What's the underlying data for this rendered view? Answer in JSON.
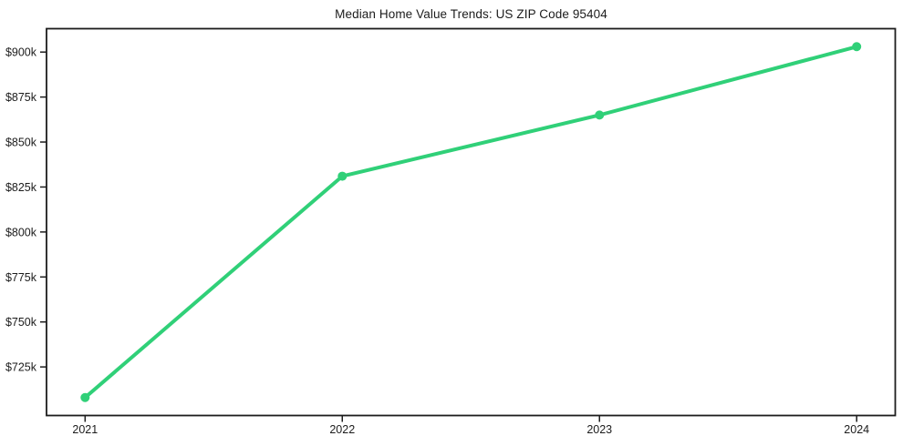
{
  "chart_data": {
    "type": "line",
    "title": "Median Home Value Trends: US ZIP Code 95404",
    "categories": [
      "2021",
      "2022",
      "2023",
      "2024"
    ],
    "series": [
      {
        "name": "median-home-value",
        "color": "#30d078",
        "values": [
          708000,
          831000,
          865000,
          903000
        ]
      }
    ],
    "xlabel": "",
    "ylabel": "",
    "xlim": [
      -0.15,
      3.15
    ],
    "ylim": [
      698000,
      913000
    ],
    "yticks": [
      725000,
      750000,
      775000,
      800000,
      825000,
      850000,
      875000,
      900000
    ],
    "ytick_labels": [
      "$725k",
      "$750k",
      "$775k",
      "$800k",
      "$825k",
      "$850k",
      "$875k",
      "$900k"
    ],
    "grid": false,
    "legend_position": "none",
    "marker": "circle",
    "line_width": 4,
    "marker_radius": 5,
    "axis_color": "#1c1c1c",
    "text_color": "#1c1c1c",
    "tick_font_size": 12.5,
    "background": "#ffffff"
  }
}
